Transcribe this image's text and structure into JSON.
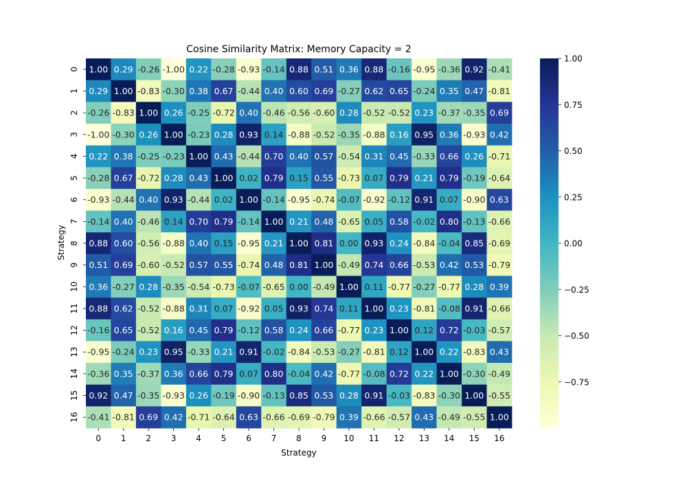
{
  "chart_data": {
    "type": "heatmap",
    "title": "Cosine Similarity Matrix: Memory Capacity = 2",
    "xlabel": "Strategy",
    "ylabel": "Strategy",
    "x_categories": [
      "0",
      "1",
      "2",
      "3",
      "4",
      "5",
      "6",
      "7",
      "8",
      "9",
      "10",
      "11",
      "12",
      "13",
      "14",
      "15",
      "16"
    ],
    "y_categories": [
      "0",
      "1",
      "2",
      "3",
      "4",
      "5",
      "6",
      "7",
      "8",
      "9",
      "10",
      "11",
      "12",
      "13",
      "14",
      "15",
      "16"
    ],
    "values": [
      [
        1.0,
        0.29,
        -0.26,
        -1.0,
        0.22,
        -0.28,
        -0.93,
        -0.14,
        0.88,
        0.51,
        0.36,
        0.88,
        -0.16,
        -0.95,
        -0.36,
        0.92,
        -0.41
      ],
      [
        0.29,
        1.0,
        -0.83,
        -0.3,
        0.38,
        0.67,
        -0.44,
        0.4,
        0.6,
        0.69,
        -0.27,
        0.62,
        0.65,
        -0.24,
        0.35,
        0.47,
        -0.81
      ],
      [
        -0.26,
        -0.83,
        1.0,
        0.26,
        -0.25,
        -0.72,
        0.4,
        -0.46,
        -0.56,
        -0.6,
        0.28,
        -0.52,
        -0.52,
        0.23,
        -0.37,
        -0.35,
        0.69
      ],
      [
        -1.0,
        -0.3,
        0.26,
        1.0,
        -0.23,
        0.28,
        0.93,
        0.14,
        -0.88,
        -0.52,
        -0.35,
        -0.88,
        0.16,
        0.95,
        0.36,
        -0.93,
        0.42
      ],
      [
        0.22,
        0.38,
        -0.25,
        -0.23,
        1.0,
        0.43,
        -0.44,
        0.7,
        0.4,
        0.57,
        -0.54,
        0.31,
        0.45,
        -0.33,
        0.66,
        0.26,
        -0.71
      ],
      [
        -0.28,
        0.67,
        -0.72,
        0.28,
        0.43,
        1.0,
        0.02,
        0.79,
        0.15,
        0.55,
        -0.73,
        0.07,
        0.79,
        0.21,
        0.79,
        -0.19,
        -0.64
      ],
      [
        -0.93,
        -0.44,
        0.4,
        0.93,
        -0.44,
        0.02,
        1.0,
        -0.14,
        -0.95,
        -0.74,
        -0.07,
        -0.92,
        -0.12,
        0.91,
        0.07,
        -0.9,
        0.63
      ],
      [
        -0.14,
        0.4,
        -0.46,
        0.14,
        0.7,
        0.79,
        -0.14,
        1.0,
        0.21,
        0.48,
        -0.65,
        0.05,
        0.58,
        -0.02,
        0.8,
        -0.13,
        -0.66
      ],
      [
        0.88,
        0.6,
        -0.56,
        -0.88,
        0.4,
        0.15,
        -0.95,
        0.21,
        1.0,
        0.81,
        0.0,
        0.93,
        0.24,
        -0.84,
        -0.04,
        0.85,
        -0.69
      ],
      [
        0.51,
        0.69,
        -0.6,
        -0.52,
        0.57,
        0.55,
        -0.74,
        0.48,
        0.81,
        1.0,
        -0.49,
        0.74,
        0.66,
        -0.53,
        0.42,
        0.53,
        -0.79
      ],
      [
        0.36,
        -0.27,
        0.28,
        -0.35,
        -0.54,
        -0.73,
        -0.07,
        -0.65,
        0.0,
        -0.49,
        1.0,
        0.11,
        -0.77,
        -0.27,
        -0.77,
        0.28,
        0.39
      ],
      [
        0.88,
        0.62,
        -0.52,
        -0.88,
        0.31,
        0.07,
        -0.92,
        0.05,
        0.93,
        0.74,
        0.11,
        1.0,
        0.23,
        -0.81,
        -0.08,
        0.91,
        -0.66
      ],
      [
        -0.16,
        0.65,
        -0.52,
        0.16,
        0.45,
        0.79,
        -0.12,
        0.58,
        0.24,
        0.66,
        -0.77,
        0.23,
        1.0,
        0.12,
        0.72,
        -0.03,
        -0.57
      ],
      [
        -0.95,
        -0.24,
        0.23,
        0.95,
        -0.33,
        0.21,
        0.91,
        -0.02,
        -0.84,
        -0.53,
        -0.27,
        -0.81,
        0.12,
        1.0,
        0.22,
        -0.83,
        0.43
      ],
      [
        -0.36,
        0.35,
        -0.37,
        0.36,
        0.66,
        0.79,
        0.07,
        0.8,
        -0.04,
        0.42,
        -0.77,
        -0.08,
        0.72,
        0.22,
        1.0,
        -0.3,
        -0.49
      ],
      [
        0.92,
        0.47,
        -0.35,
        -0.93,
        0.26,
        -0.19,
        -0.9,
        -0.13,
        0.85,
        0.53,
        0.28,
        0.91,
        -0.03,
        -0.83,
        -0.3,
        1.0,
        -0.55
      ],
      [
        -0.41,
        -0.81,
        0.69,
        0.42,
        -0.71,
        -0.64,
        0.63,
        -0.66,
        -0.69,
        -0.79,
        0.39,
        -0.66,
        -0.57,
        0.43,
        -0.49,
        -0.55,
        1.0
      ]
    ],
    "value_format": "2 decimals",
    "colormap": "YlGnBu",
    "colormap_stops": [
      "#ffffd9",
      "#edf8b1",
      "#c7e9b4",
      "#7fcdbb",
      "#41b6c4",
      "#1d91c0",
      "#225ea8",
      "#253494",
      "#081d58"
    ],
    "color_range": [
      -1.0,
      1.0
    ],
    "colorbar_ticks": [
      "1.00",
      "0.75",
      "0.50",
      "0.25",
      "0.00",
      "−0.25",
      "−0.50",
      "−0.75"
    ],
    "colorbar_tick_values": [
      1.0,
      0.75,
      0.5,
      0.25,
      0.0,
      -0.25,
      -0.5,
      -0.75
    ],
    "colorbar_range": [
      -1.0,
      1.0
    ],
    "grid": false,
    "legend": "colorbar-right"
  }
}
